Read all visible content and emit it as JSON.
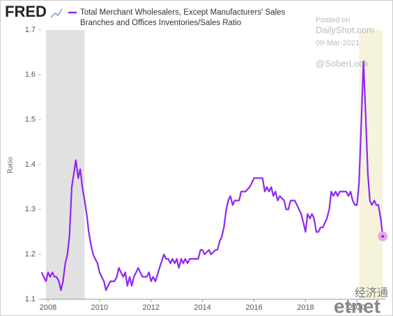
{
  "chart_data": {
    "type": "line",
    "logo": "FRED",
    "y_label": "Ratio",
    "series": [
      {
        "name": "Total Merchant Wholesalers, Except Manufacturers' Sales Branches and Offices Inventories/Sales Ratio",
        "color": "#9026f0",
        "x": [
          2007.75,
          2007.83,
          2007.92,
          2008.0,
          2008.08,
          2008.17,
          2008.25,
          2008.33,
          2008.42,
          2008.5,
          2008.58,
          2008.67,
          2008.75,
          2008.83,
          2008.92,
          2009.0,
          2009.08,
          2009.17,
          2009.25,
          2009.33,
          2009.42,
          2009.5,
          2009.58,
          2009.67,
          2009.75,
          2009.83,
          2009.92,
          2010.0,
          2010.08,
          2010.17,
          2010.25,
          2010.33,
          2010.42,
          2010.58,
          2010.67,
          2010.75,
          2010.83,
          2010.92,
          2011.0,
          2011.08,
          2011.17,
          2011.25,
          2011.33,
          2011.42,
          2011.5,
          2011.58,
          2011.67,
          2011.83,
          2011.92,
          2012.0,
          2012.08,
          2012.17,
          2012.33,
          2012.5,
          2012.58,
          2012.67,
          2012.75,
          2012.83,
          2012.92,
          2013.0,
          2013.08,
          2013.17,
          2013.25,
          2013.33,
          2013.42,
          2013.5,
          2013.67,
          2013.83,
          2013.92,
          2014.0,
          2014.08,
          2014.25,
          2014.33,
          2014.5,
          2014.58,
          2014.67,
          2014.75,
          2014.83,
          2014.92,
          2015.0,
          2015.08,
          2015.17,
          2015.25,
          2015.42,
          2015.5,
          2015.67,
          2015.83,
          2015.92,
          2016.0,
          2016.33,
          2016.42,
          2016.5,
          2016.58,
          2016.67,
          2016.75,
          2016.83,
          2016.92,
          2017.0,
          2017.17,
          2017.25,
          2017.33,
          2017.42,
          2017.58,
          2017.67,
          2017.83,
          2017.92,
          2018.0,
          2018.08,
          2018.17,
          2018.25,
          2018.33,
          2018.42,
          2018.5,
          2018.58,
          2018.67,
          2018.83,
          2018.92,
          2019.0,
          2019.08,
          2019.17,
          2019.25,
          2019.33,
          2019.58,
          2019.67,
          2019.75,
          2019.83,
          2019.92,
          2020.0,
          2020.08,
          2020.17,
          2020.25,
          2020.33,
          2020.42,
          2020.5,
          2020.58,
          2020.67,
          2020.75,
          2020.83,
          2020.92,
          2021.0
        ],
        "values": [
          1.16,
          1.15,
          1.14,
          1.16,
          1.15,
          1.16,
          1.15,
          1.15,
          1.14,
          1.12,
          1.14,
          1.18,
          1.2,
          1.24,
          1.35,
          1.38,
          1.41,
          1.37,
          1.39,
          1.35,
          1.32,
          1.29,
          1.25,
          1.22,
          1.2,
          1.19,
          1.18,
          1.16,
          1.15,
          1.14,
          1.12,
          1.13,
          1.14,
          1.14,
          1.15,
          1.17,
          1.16,
          1.15,
          1.16,
          1.13,
          1.15,
          1.13,
          1.15,
          1.16,
          1.17,
          1.16,
          1.15,
          1.15,
          1.16,
          1.14,
          1.15,
          1.14,
          1.17,
          1.2,
          1.19,
          1.19,
          1.18,
          1.19,
          1.18,
          1.19,
          1.17,
          1.19,
          1.18,
          1.19,
          1.18,
          1.19,
          1.19,
          1.19,
          1.21,
          1.21,
          1.2,
          1.21,
          1.2,
          1.21,
          1.21,
          1.23,
          1.24,
          1.26,
          1.3,
          1.32,
          1.33,
          1.31,
          1.32,
          1.32,
          1.34,
          1.34,
          1.35,
          1.36,
          1.37,
          1.37,
          1.34,
          1.35,
          1.34,
          1.35,
          1.33,
          1.34,
          1.32,
          1.33,
          1.32,
          1.3,
          1.3,
          1.32,
          1.32,
          1.31,
          1.29,
          1.27,
          1.25,
          1.29,
          1.28,
          1.29,
          1.28,
          1.25,
          1.25,
          1.26,
          1.26,
          1.28,
          1.3,
          1.34,
          1.33,
          1.34,
          1.33,
          1.34,
          1.34,
          1.33,
          1.34,
          1.32,
          1.31,
          1.31,
          1.36,
          1.5,
          1.63,
          1.52,
          1.38,
          1.32,
          1.31,
          1.32,
          1.31,
          1.31,
          1.28,
          1.24
        ]
      }
    ],
    "last_marker_color": "#e7a5e8",
    "shaded_regions": [
      {
        "x": [
          2007.92,
          2009.42
        ],
        "color": "#e1e1e1"
      },
      {
        "x": [
          2020.08,
          2021.0
        ],
        "color": "#f5f3dc"
      }
    ],
    "xlim": [
      2007.73,
      2021.1
    ],
    "xticks": [
      2008,
      2010,
      2012,
      2014,
      2016,
      2018,
      2020
    ],
    "ylim": [
      1.1,
      1.7
    ],
    "yticks": [
      1.1,
      1.2,
      1.3,
      1.4,
      1.5,
      1.6,
      1.7
    ],
    "annotations": [
      "Posted on",
      "DailyShot.com",
      "09-Mar-2021",
      "@SoberLook"
    ],
    "watermark": [
      "经济通",
      "etnet"
    ]
  }
}
